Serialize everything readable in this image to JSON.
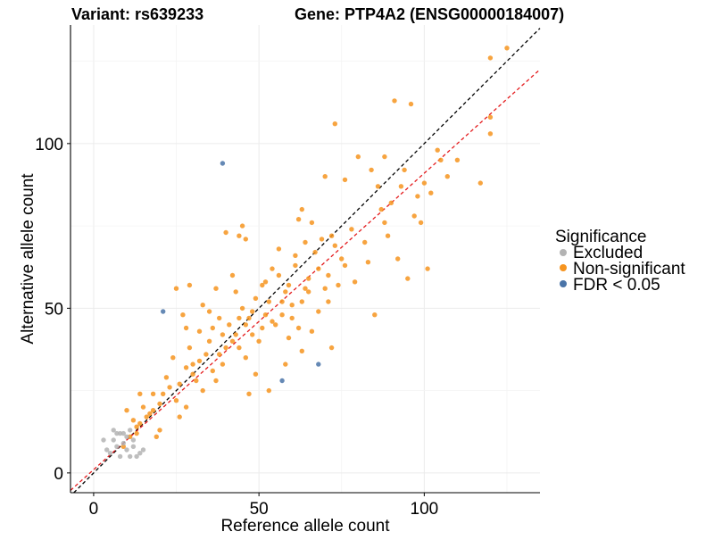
{
  "chart_data": {
    "type": "scatter",
    "title_left": "Variant: rs639233",
    "title_right": "Gene: PTP4A2 (ENSG00000184007)",
    "xlabel": "Reference allele count",
    "ylabel": "Alternative allele count",
    "xlim": [
      -7,
      135
    ],
    "ylim": [
      -6,
      136
    ],
    "xticks": [
      0,
      50,
      100
    ],
    "yticks": [
      0,
      50,
      100
    ],
    "grid": true,
    "legend": {
      "title": "Significance",
      "position": "right",
      "items": [
        {
          "label": "Excluded",
          "color": "#b3b3b3"
        },
        {
          "label": "Non-significant",
          "color": "#f6941f"
        },
        {
          "label": "FDR < 0.05",
          "color": "#4a74a8"
        }
      ]
    },
    "reference_lines": [
      {
        "style": "dashed",
        "color": "#000000",
        "slope": 1.0,
        "intercept": 0
      },
      {
        "style": "dashed",
        "color": "#e41a1c",
        "slope": 0.9,
        "intercept": 1
      }
    ],
    "series": [
      {
        "name": "Excluded",
        "color": "#b3b3b3",
        "points": [
          [
            3,
            10
          ],
          [
            5,
            6
          ],
          [
            6,
            13
          ],
          [
            7,
            8
          ],
          [
            8,
            5
          ],
          [
            8,
            12
          ],
          [
            9,
            9
          ],
          [
            10,
            11
          ],
          [
            11,
            5
          ],
          [
            11,
            13
          ],
          [
            12,
            8
          ],
          [
            13,
            5
          ],
          [
            14,
            6
          ],
          [
            15,
            7
          ],
          [
            6,
            10
          ],
          [
            9,
            12
          ],
          [
            4,
            7
          ],
          [
            10,
            7
          ],
          [
            7,
            12
          ],
          [
            12,
            10
          ]
        ]
      },
      {
        "name": "FDR < 0.05",
        "color": "#4a74a8",
        "points": [
          [
            39,
            94
          ],
          [
            21,
            49
          ],
          [
            57,
            28
          ],
          [
            68,
            33
          ]
        ]
      },
      {
        "name": "Non-significant",
        "color": "#f6941f",
        "generated": true,
        "points": [
          [
            125,
            129
          ],
          [
            120,
            126
          ],
          [
            96,
            112
          ],
          [
            91,
            113
          ],
          [
            73,
            106
          ],
          [
            120,
            108
          ],
          [
            120,
            103
          ],
          [
            117,
            88
          ],
          [
            101,
            62
          ],
          [
            105,
            95
          ],
          [
            107,
            90
          ],
          [
            98,
            84
          ],
          [
            93,
            87
          ],
          [
            76,
            89
          ],
          [
            80,
            96
          ],
          [
            84,
            92
          ],
          [
            88,
            96
          ],
          [
            63,
            80
          ],
          [
            46,
            71
          ],
          [
            45,
            75
          ],
          [
            40,
            73
          ],
          [
            29,
            57
          ],
          [
            25,
            56
          ],
          [
            64,
            56
          ],
          [
            70,
            56
          ],
          [
            85,
            48
          ],
          [
            95,
            59
          ],
          [
            97,
            78
          ],
          [
            92,
            65
          ],
          [
            99,
            76
          ],
          [
            53,
            25
          ],
          [
            47,
            24
          ],
          [
            37,
            28
          ],
          [
            28,
            20
          ],
          [
            20,
            13
          ],
          [
            17,
            18
          ],
          [
            13,
            14
          ],
          [
            10,
            19
          ],
          [
            9,
            8
          ],
          [
            14,
            24
          ],
          [
            30,
            33
          ],
          [
            28,
            44
          ],
          [
            33,
            51
          ],
          [
            35,
            49
          ],
          [
            44,
            72
          ],
          [
            62,
            77
          ],
          [
            66,
            76
          ],
          [
            72,
            72
          ],
          [
            78,
            74
          ],
          [
            82,
            70
          ],
          [
            87,
            80
          ],
          [
            89,
            72
          ],
          [
            86,
            87
          ],
          [
            70,
            90
          ],
          [
            59,
            41
          ],
          [
            56,
            68
          ],
          [
            61,
            63
          ],
          [
            58,
            33
          ],
          [
            52,
            48
          ],
          [
            48,
            42
          ],
          [
            43,
            55
          ],
          [
            39,
            33
          ],
          [
            35,
            40
          ],
          [
            25,
            22
          ],
          [
            22,
            29
          ],
          [
            18,
            24
          ],
          [
            15,
            20
          ],
          [
            19,
            11
          ],
          [
            12,
            16
          ],
          [
            24,
            35
          ],
          [
            26,
            17
          ],
          [
            31,
            28
          ],
          [
            38,
            47
          ],
          [
            42,
            60
          ],
          [
            46,
            35
          ],
          [
            51,
            57
          ],
          [
            54,
            62
          ],
          [
            57,
            52
          ],
          [
            60,
            47
          ],
          [
            65,
            55
          ],
          [
            68,
            49
          ],
          [
            71,
            60
          ],
          [
            75,
            65
          ],
          [
            79,
            58
          ],
          [
            83,
            64
          ],
          [
            62,
            44
          ],
          [
            66,
            43
          ],
          [
            72,
            38
          ],
          [
            63,
            37
          ],
          [
            49,
            30
          ],
          [
            44,
            38
          ],
          [
            36,
            31
          ],
          [
            33,
            25
          ],
          [
            29,
            38
          ],
          [
            27,
            48
          ],
          [
            32,
            43
          ],
          [
            37,
            56
          ],
          [
            41,
            45
          ],
          [
            45,
            50
          ],
          [
            50,
            40
          ],
          [
            53,
            52
          ],
          [
            55,
            45
          ],
          [
            58,
            55
          ],
          [
            47,
            47
          ],
          [
            43,
            42
          ],
          [
            40,
            38
          ],
          [
            38,
            36
          ],
          [
            49,
            53
          ],
          [
            52,
            58
          ],
          [
            56,
            60
          ],
          [
            59,
            57
          ],
          [
            61,
            66
          ],
          [
            64,
            70
          ],
          [
            67,
            67
          ],
          [
            69,
            71
          ],
          [
            73,
            69
          ],
          [
            76,
            63
          ],
          [
            74,
            57
          ],
          [
            71,
            52
          ],
          [
            68,
            62
          ],
          [
            65,
            59
          ],
          [
            63,
            52
          ],
          [
            60,
            51
          ],
          [
            57,
            48
          ],
          [
            54,
            46
          ],
          [
            51,
            44
          ],
          [
            48,
            49
          ],
          [
            46,
            45
          ],
          [
            44,
            47
          ],
          [
            42,
            40
          ],
          [
            39,
            42
          ],
          [
            36,
            44
          ],
          [
            34,
            36
          ],
          [
            32,
            34
          ],
          [
            30,
            30
          ],
          [
            28,
            32
          ],
          [
            26,
            27
          ],
          [
            23,
            26
          ],
          [
            21,
            24
          ],
          [
            20,
            21
          ],
          [
            18,
            19
          ],
          [
            16,
            17
          ],
          [
            14,
            15
          ],
          [
            13,
            12
          ],
          [
            11,
            11
          ],
          [
            110,
            95
          ],
          [
            102,
            85
          ],
          [
            104,
            98
          ],
          [
            100,
            88
          ],
          [
            94,
            92
          ],
          [
            90,
            82
          ],
          [
            88,
            76
          ]
        ]
      }
    ]
  }
}
